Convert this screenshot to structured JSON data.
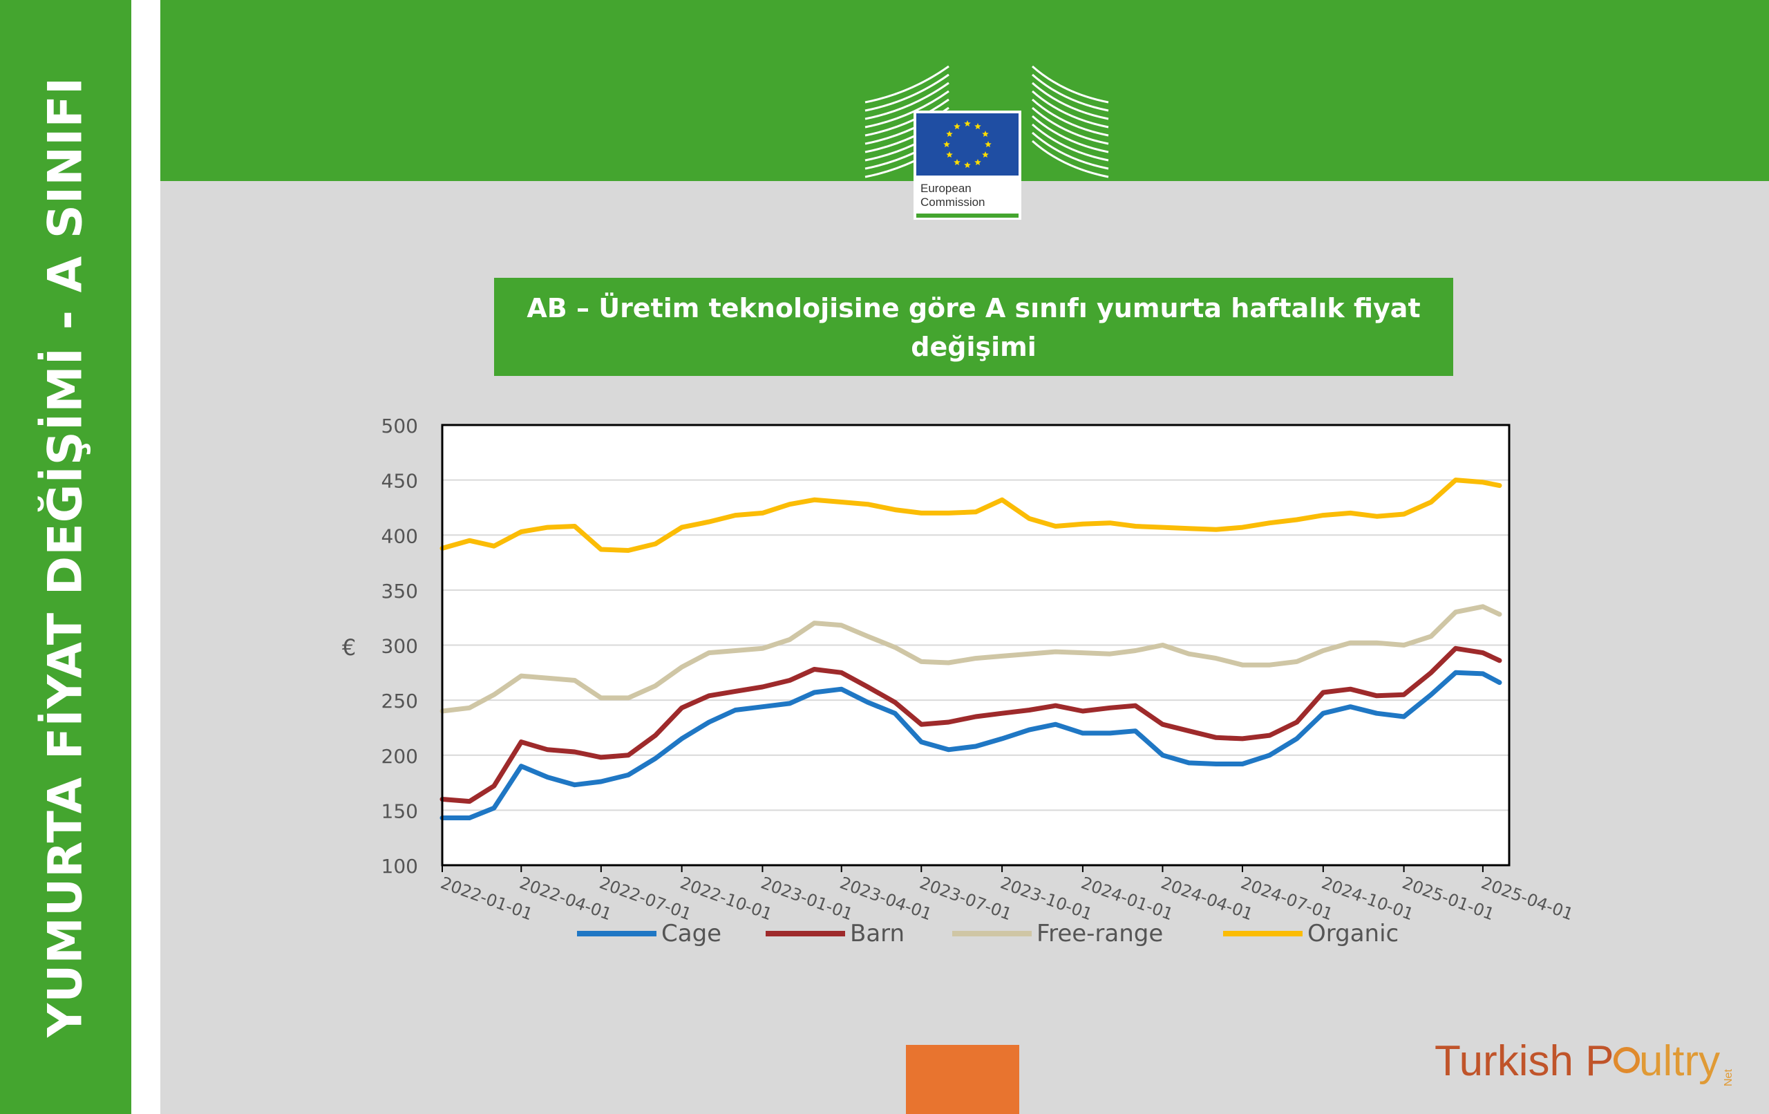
{
  "sidebar": {
    "title": "YUMURTA FİYAT DEĞİŞİMİ - A SINIFI"
  },
  "logo": {
    "line1": "European",
    "line2": "Commission"
  },
  "header": {
    "title": "AB – Üretim teknolojisine göre A sınıfı yumurta haftalık fiyat değişimi"
  },
  "brand": {
    "part1": "Turkish P",
    "part2": "ultry",
    "suffix": "Net"
  },
  "colors": {
    "green": "#44a52f",
    "cage": "#1f77c4",
    "barn": "#9e2a2b",
    "free_range": "#cfc6a5",
    "organic": "#fbbc05",
    "orange": "#e8742f"
  },
  "chart_data": {
    "type": "line",
    "ylabel": "€",
    "ylim": [
      100,
      500
    ],
    "yticks": [
      100,
      150,
      200,
      250,
      300,
      350,
      400,
      450,
      500
    ],
    "xlim": [
      "2022-01-01",
      "2025-05-01"
    ],
    "xticks": [
      "2022-01-01",
      "2022-04-01",
      "2022-07-01",
      "2022-10-01",
      "2023-01-01",
      "2023-04-01",
      "2023-07-01",
      "2023-10-01",
      "2024-01-01",
      "2024-04-01",
      "2024-07-01",
      "2024-10-01",
      "2025-01-01",
      "2025-04-01"
    ],
    "grid": true,
    "legend": "bottom",
    "series": [
      {
        "name": "Cage",
        "x": [
          "2022-01-01",
          "2022-02-01",
          "2022-03-01",
          "2022-04-01",
          "2022-05-01",
          "2022-06-01",
          "2022-07-01",
          "2022-08-01",
          "2022-09-01",
          "2022-10-01",
          "2022-11-01",
          "2022-12-01",
          "2023-01-01",
          "2023-02-01",
          "2023-03-01",
          "2023-04-01",
          "2023-05-01",
          "2023-06-01",
          "2023-07-01",
          "2023-08-01",
          "2023-09-01",
          "2023-10-01",
          "2023-11-01",
          "2023-12-01",
          "2024-01-01",
          "2024-02-01",
          "2024-03-01",
          "2024-04-01",
          "2024-05-01",
          "2024-06-01",
          "2024-07-01",
          "2024-08-01",
          "2024-09-01",
          "2024-10-01",
          "2024-11-01",
          "2024-12-01",
          "2025-01-01",
          "2025-02-01",
          "2025-03-01",
          "2025-04-01",
          "2025-04-20"
        ],
        "y": [
          143,
          143,
          152,
          190,
          180,
          173,
          176,
          182,
          197,
          215,
          230,
          241,
          244,
          247,
          257,
          260,
          248,
          238,
          212,
          205,
          208,
          215,
          223,
          228,
          220,
          220,
          222,
          200,
          193,
          192,
          192,
          200,
          215,
          238,
          244,
          238,
          235,
          255,
          275,
          274,
          266
        ]
      },
      {
        "name": "Barn",
        "x": [
          "2022-01-01",
          "2022-02-01",
          "2022-03-01",
          "2022-04-01",
          "2022-05-01",
          "2022-06-01",
          "2022-07-01",
          "2022-08-01",
          "2022-09-01",
          "2022-10-01",
          "2022-11-01",
          "2022-12-01",
          "2023-01-01",
          "2023-02-01",
          "2023-03-01",
          "2023-04-01",
          "2023-05-01",
          "2023-06-01",
          "2023-07-01",
          "2023-08-01",
          "2023-09-01",
          "2023-10-01",
          "2023-11-01",
          "2023-12-01",
          "2024-01-01",
          "2024-02-01",
          "2024-03-01",
          "2024-04-01",
          "2024-05-01",
          "2024-06-01",
          "2024-07-01",
          "2024-08-01",
          "2024-09-01",
          "2024-10-01",
          "2024-11-01",
          "2024-12-01",
          "2025-01-01",
          "2025-02-01",
          "2025-03-01",
          "2025-04-01",
          "2025-04-20"
        ],
        "y": [
          160,
          158,
          172,
          212,
          205,
          203,
          198,
          200,
          218,
          243,
          254,
          258,
          262,
          268,
          278,
          275,
          262,
          248,
          228,
          230,
          235,
          238,
          241,
          245,
          240,
          243,
          245,
          228,
          222,
          216,
          215,
          218,
          230,
          257,
          260,
          254,
          255,
          275,
          297,
          293,
          286
        ]
      },
      {
        "name": "Free-range",
        "x": [
          "2022-01-01",
          "2022-02-01",
          "2022-03-01",
          "2022-04-01",
          "2022-05-01",
          "2022-06-01",
          "2022-07-01",
          "2022-08-01",
          "2022-09-01",
          "2022-10-01",
          "2022-11-01",
          "2022-12-01",
          "2023-01-01",
          "2023-02-01",
          "2023-03-01",
          "2023-04-01",
          "2023-05-01",
          "2023-06-01",
          "2023-07-01",
          "2023-08-01",
          "2023-09-01",
          "2023-10-01",
          "2023-11-01",
          "2023-12-01",
          "2024-01-01",
          "2024-02-01",
          "2024-03-01",
          "2024-04-01",
          "2024-05-01",
          "2024-06-01",
          "2024-07-01",
          "2024-08-01",
          "2024-09-01",
          "2024-10-01",
          "2024-11-01",
          "2024-12-01",
          "2025-01-01",
          "2025-02-01",
          "2025-03-01",
          "2025-04-01",
          "2025-04-20"
        ],
        "y": [
          240,
          243,
          255,
          272,
          270,
          268,
          252,
          252,
          263,
          280,
          293,
          295,
          297,
          305,
          320,
          318,
          308,
          298,
          285,
          284,
          288,
          290,
          292,
          294,
          293,
          292,
          295,
          300,
          292,
          288,
          282,
          282,
          285,
          295,
          302,
          302,
          300,
          308,
          330,
          335,
          328
        ]
      },
      {
        "name": "Organic",
        "x": [
          "2022-01-01",
          "2022-02-01",
          "2022-03-01",
          "2022-04-01",
          "2022-05-01",
          "2022-06-01",
          "2022-07-01",
          "2022-08-01",
          "2022-09-01",
          "2022-10-01",
          "2022-11-01",
          "2022-12-01",
          "2023-01-01",
          "2023-02-01",
          "2023-03-01",
          "2023-04-01",
          "2023-05-01",
          "2023-06-01",
          "2023-07-01",
          "2023-08-01",
          "2023-09-01",
          "2023-10-01",
          "2023-11-01",
          "2023-12-01",
          "2024-01-01",
          "2024-02-01",
          "2024-03-01",
          "2024-04-01",
          "2024-05-01",
          "2024-06-01",
          "2024-07-01",
          "2024-08-01",
          "2024-09-01",
          "2024-10-01",
          "2024-11-01",
          "2024-12-01",
          "2025-01-01",
          "2025-02-01",
          "2025-03-01",
          "2025-04-01",
          "2025-04-20"
        ],
        "y": [
          388,
          395,
          390,
          403,
          407,
          408,
          387,
          386,
          392,
          407,
          412,
          418,
          420,
          428,
          432,
          430,
          428,
          423,
          420,
          420,
          421,
          432,
          415,
          408,
          410,
          411,
          408,
          407,
          406,
          405,
          407,
          411,
          414,
          418,
          420,
          417,
          419,
          430,
          450,
          448,
          445
        ]
      }
    ]
  }
}
